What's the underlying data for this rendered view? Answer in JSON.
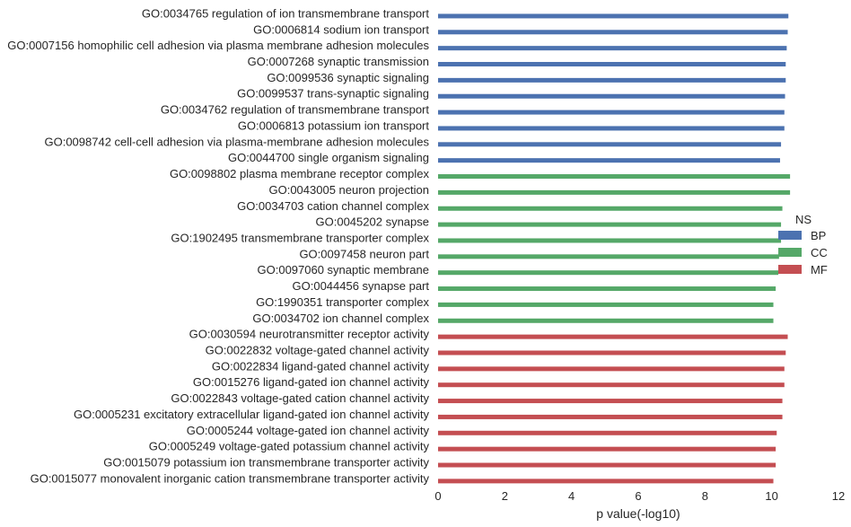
{
  "chart_data": {
    "type": "bar",
    "orientation": "horizontal",
    "title": "",
    "xlabel": "p value(-log10)",
    "ylabel": "",
    "xlim": [
      0,
      12
    ],
    "xticks": [
      0,
      2,
      4,
      6,
      8,
      10,
      12
    ],
    "grid": false,
    "legend": {
      "title": "NS",
      "placement": "right",
      "entries": [
        "BP",
        "CC",
        "MF"
      ]
    },
    "colors": {
      "BP": "#4c72b0",
      "CC": "#55a868",
      "MF": "#c44e52"
    },
    "categories": [
      "GO:0034765 regulation of ion transmembrane transport",
      "GO:0006814 sodium ion transport",
      "GO:0007156 homophilic cell adhesion via plasma membrane adhesion molecules",
      "GO:0007268 synaptic transmission",
      "GO:0099536 synaptic signaling",
      "GO:0099537 trans-synaptic signaling",
      "GO:0034762 regulation of transmembrane transport",
      "GO:0006813 potassium ion transport",
      "GO:0098742 cell-cell adhesion via plasma-membrane adhesion molecules",
      "GO:0044700 single organism signaling",
      "GO:0098802 plasma membrane receptor complex",
      "GO:0043005 neuron projection",
      "GO:0034703 cation channel complex",
      "GO:0045202 synapse",
      "GO:1902495 transmembrane transporter complex",
      "GO:0097458 neuron part",
      "GO:0097060 synaptic membrane",
      "GO:0044456 synapse part",
      "GO:1990351 transporter complex",
      "GO:0034702 ion channel complex",
      "GO:0030594 neurotransmitter receptor activity",
      "GO:0022832 voltage-gated channel activity",
      "GO:0022834 ligand-gated channel activity",
      "GO:0015276 ligand-gated ion channel activity",
      "GO:0022843 voltage-gated cation channel activity",
      "GO:0005231 excitatory extracellular ligand-gated ion channel activity",
      "GO:0005244 voltage-gated ion channel activity",
      "GO:0005249 voltage-gated potassium channel activity",
      "GO:0015079 potassium ion transmembrane transporter activity",
      "GO:0015077 monovalent inorganic cation transmembrane transporter activity"
    ],
    "groups": [
      "BP",
      "BP",
      "BP",
      "BP",
      "BP",
      "BP",
      "BP",
      "BP",
      "BP",
      "BP",
      "CC",
      "CC",
      "CC",
      "CC",
      "CC",
      "CC",
      "CC",
      "CC",
      "CC",
      "CC",
      "MF",
      "MF",
      "MF",
      "MF",
      "MF",
      "MF",
      "MF",
      "MF",
      "MF",
      "MF"
    ],
    "values": [
      10.5,
      10.48,
      10.45,
      10.42,
      10.42,
      10.4,
      10.38,
      10.38,
      10.28,
      10.25,
      10.55,
      10.55,
      10.32,
      10.28,
      10.28,
      10.22,
      10.2,
      10.12,
      10.05,
      10.05,
      10.48,
      10.42,
      10.38,
      10.38,
      10.32,
      10.32,
      10.15,
      10.12,
      10.12,
      10.05
    ]
  }
}
